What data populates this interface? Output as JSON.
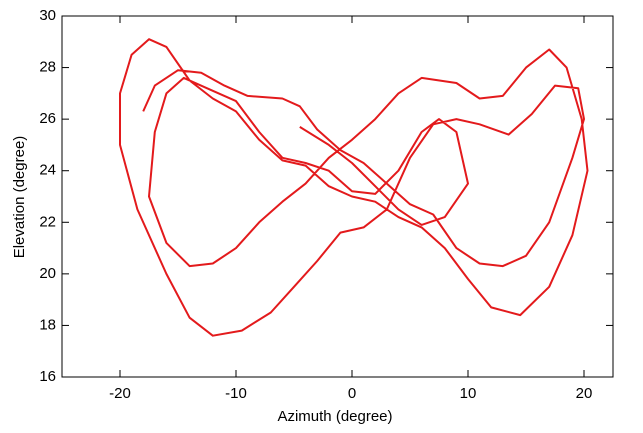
{
  "chart_data": {
    "type": "line",
    "xlabel": "Azimuth (degree)",
    "ylabel": "Elevation (degree)",
    "xlim": [
      -25,
      22.5
    ],
    "ylim": [
      16,
      30
    ],
    "xticks": [
      -20,
      -10,
      0,
      10,
      20
    ],
    "yticks": [
      16,
      18,
      20,
      22,
      24,
      26,
      28,
      30
    ],
    "grid": false,
    "series": [
      {
        "color": "#e31a1c",
        "x": [
          -18,
          -17,
          -15,
          -13,
          -11,
          -9,
          -6,
          -4.5,
          -3,
          -1,
          1,
          3,
          5,
          7,
          9,
          11,
          13,
          15,
          17,
          19,
          20,
          19.5,
          17.5,
          15.5,
          13.5,
          11,
          9,
          7,
          5,
          3,
          1,
          -1,
          -3,
          -5,
          -7,
          -9.5,
          -12,
          -14,
          -16,
          -18.5,
          -20,
          -20,
          -19,
          -17.5,
          -16,
          -14,
          -12,
          -10,
          -8,
          -6,
          -4,
          -2,
          0,
          2,
          4,
          6,
          8,
          10,
          12,
          14.5,
          17,
          19,
          20.3,
          19.8,
          18.5,
          17,
          15,
          13,
          11,
          9,
          6,
          4,
          2,
          0,
          -2,
          -4,
          -6,
          -8,
          -10,
          -12,
          -14,
          -16,
          -17.5,
          -17,
          -16,
          -14.5,
          -12,
          -10,
          -8,
          -6,
          -4,
          -2,
          0,
          2,
          4,
          6,
          7.5,
          9,
          10,
          8,
          6,
          4,
          2,
          0,
          -2,
          -4.5
        ],
        "values": [
          26.3,
          27.3,
          27.9,
          27.8,
          27.3,
          26.9,
          26.8,
          26.5,
          25.6,
          24.8,
          24.3,
          23.5,
          22.7,
          22.3,
          21,
          20.4,
          20.3,
          20.7,
          22,
          24.5,
          26,
          27.2,
          27.3,
          26.2,
          25.4,
          25.8,
          26,
          25.8,
          24.5,
          22.5,
          21.8,
          21.6,
          20.5,
          19.5,
          18.5,
          17.8,
          17.6,
          18.3,
          20,
          22.5,
          25,
          27,
          28.5,
          29.1,
          28.8,
          27.5,
          26.8,
          26.3,
          25.2,
          24.4,
          24.2,
          23.4,
          23,
          22.8,
          22.2,
          21.8,
          21,
          19.8,
          18.7,
          18.4,
          19.5,
          21.5,
          24,
          26,
          28,
          28.7,
          28,
          26.9,
          26.8,
          27.4,
          27.6,
          27,
          26,
          25.2,
          24.5,
          23.5,
          22.8,
          22,
          21,
          20.4,
          20.3,
          21.2,
          23,
          25.5,
          27,
          27.6,
          27.1,
          26.7,
          25.5,
          24.5,
          24.3,
          24,
          23.2,
          23.1,
          24,
          25.5,
          26,
          25.5,
          23.5,
          22.2,
          21.9,
          22.5,
          23.4,
          24.3,
          25,
          25.7
        ]
      }
    ]
  }
}
